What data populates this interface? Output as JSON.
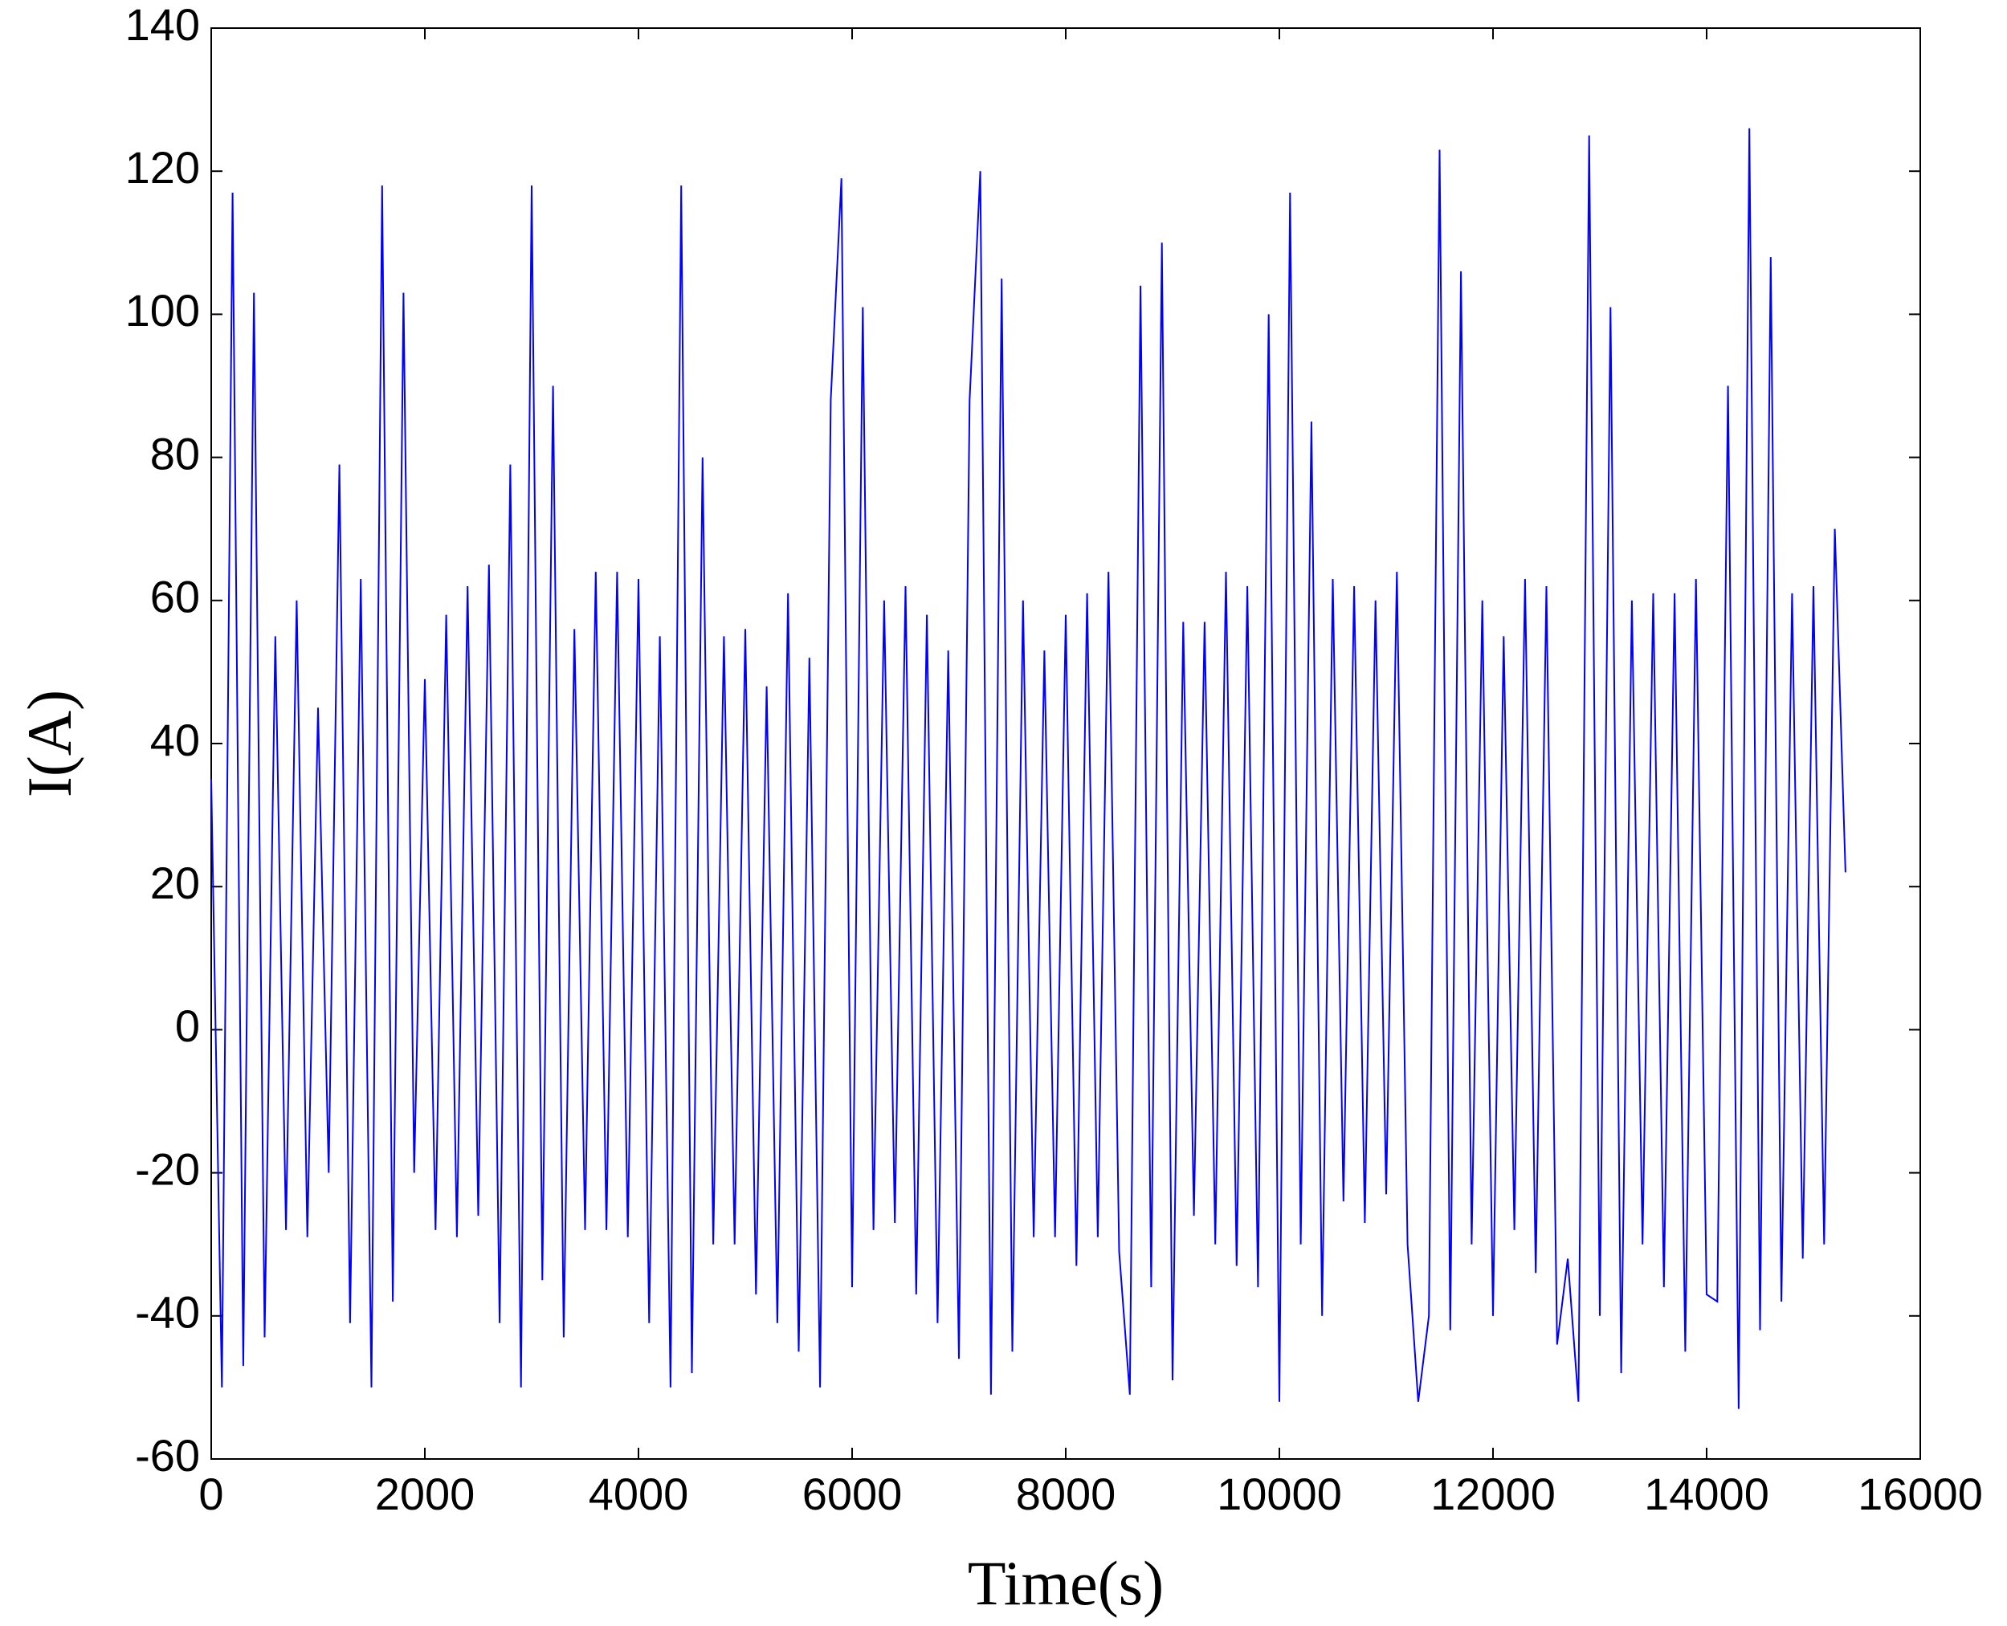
{
  "chart_data": {
    "type": "line",
    "xlabel": "Time(s)",
    "ylabel": "I(A)",
    "x": [
      0,
      100,
      200,
      300,
      400,
      500,
      600,
      700,
      800,
      900,
      1000,
      1100,
      1200,
      1300,
      1400,
      1500,
      1600,
      1700,
      1800,
      1900,
      2000,
      2100,
      2200,
      2300,
      2400,
      2500,
      2600,
      2700,
      2800,
      2900,
      3000,
      3100,
      3200,
      3300,
      3400,
      3500,
      3600,
      3700,
      3800,
      3900,
      4000,
      4100,
      4200,
      4300,
      4400,
      4500,
      4600,
      4700,
      4800,
      4900,
      5000,
      5100,
      5200,
      5300,
      5400,
      5500,
      5600,
      5700,
      5800,
      5900,
      6000,
      6100,
      6200,
      6300,
      6400,
      6500,
      6600,
      6700,
      6800,
      6900,
      7000,
      7100,
      7200,
      7300,
      7400,
      7500,
      7600,
      7700,
      7800,
      7900,
      8000,
      8100,
      8200,
      8300,
      8400,
      8500,
      8600,
      8700,
      8800,
      8900,
      9000,
      9100,
      9200,
      9300,
      9400,
      9500,
      9600,
      9700,
      9800,
      9900,
      10000,
      10100,
      10200,
      10300,
      10400,
      10500,
      10600,
      10700,
      10800,
      10900,
      11000,
      11100,
      11200,
      11300,
      11400,
      11500,
      11600,
      11700,
      11800,
      11900,
      12000,
      12100,
      12200,
      12300,
      12400,
      12500,
      12600,
      12700,
      12800,
      12900,
      13000,
      13100,
      13200,
      13300,
      13400,
      13500,
      13600,
      13700,
      13800,
      13900,
      14000,
      14100,
      14200,
      14300,
      14400,
      14500,
      14600,
      14700,
      14800,
      14900,
      15000,
      15100,
      15200,
      15300
    ],
    "series": [
      {
        "color": "#0000ff",
        "values": [
          35,
          -50,
          117,
          -47,
          103,
          -43,
          55,
          -28,
          60,
          -29,
          45,
          -20,
          79,
          -41,
          63,
          -50,
          118,
          -38,
          103,
          -20,
          49,
          -28,
          58,
          -29,
          62,
          -26,
          65,
          -41,
          79,
          -50,
          118,
          -35,
          90,
          -43,
          56,
          -28,
          64,
          -28,
          64,
          -29,
          63,
          -41,
          55,
          -50,
          118,
          -48,
          80,
          -30,
          55,
          -30,
          56,
          -37,
          48,
          -41,
          61,
          -45,
          52,
          -50,
          88,
          119,
          -36,
          101,
          -28,
          60,
          -27,
          62,
          -37,
          58,
          -41,
          53,
          -46,
          88,
          120,
          -51,
          105,
          -45,
          60,
          -29,
          53,
          -29,
          58,
          -33,
          61,
          -29,
          64,
          -31,
          -51,
          104,
          -36,
          110,
          -49,
          57,
          -26,
          57,
          -30,
          64,
          -33,
          62,
          -36,
          100,
          -52,
          117,
          -30,
          85,
          -40,
          63,
          -24,
          62,
          -27,
          60,
          -23,
          64,
          -30,
          -52,
          -40,
          123,
          -42,
          106,
          -30,
          60,
          -40,
          55,
          -28,
          63,
          -34,
          62,
          -44,
          -32,
          -52,
          125,
          -40,
          101,
          -48,
          60,
          -30,
          61,
          -36,
          61,
          -45,
          63,
          -37,
          -38,
          90,
          -53,
          126,
          -42,
          108,
          -38,
          61,
          -32,
          62,
          -30,
          70,
          22
        ]
      }
    ],
    "xlim": [
      0,
      16000
    ],
    "xticks": [
      0,
      2000,
      4000,
      6000,
      8000,
      10000,
      12000,
      14000,
      16000
    ],
    "ylim": [
      -60,
      140
    ],
    "yticks": [
      -60,
      -40,
      -20,
      0,
      20,
      40,
      60,
      80,
      100,
      120,
      140
    ]
  }
}
